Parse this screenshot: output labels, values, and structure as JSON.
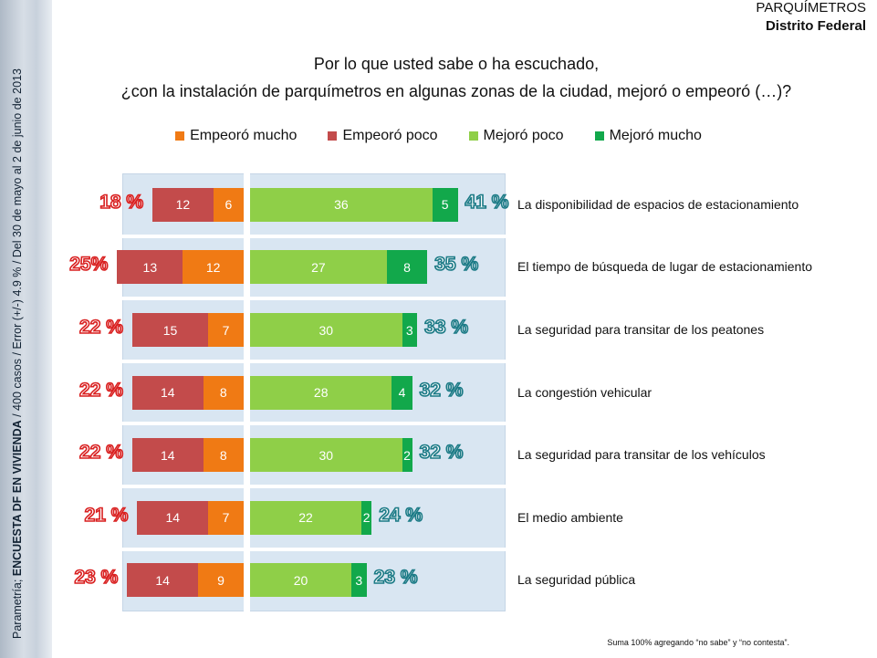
{
  "header": {
    "brand": "PARQUÍMETROS",
    "region": "Distrito Federal"
  },
  "sidebar_note": {
    "prefix": "Parametría; ",
    "survey": "ENCUESTA DF EN VIVIENDA",
    "details": " / 400 casos / Error (+/-) 4.9 % / Del 30 de mayo al 2  de junio de 2013"
  },
  "question": {
    "line1": "Por lo que usted sabe o ha escuchado,",
    "line2": "¿con la instalación de parquímetros en algunas zonas de la ciudad, mejoró o empeoró (…)?"
  },
  "footnote": "Suma 100%  agregando “no sabe” y “no contesta”.",
  "colors": {
    "empeoro_mucho": "#f07a14",
    "empeoro_poco": "#c34b4b",
    "mejoro_poco": "#8fcf48",
    "mejoro_mucho": "#12a84b",
    "total_negative": "#d92020",
    "total_positive": "#1b7a86"
  },
  "chart_data": {
    "type": "bar",
    "orientation": "horizontal",
    "stacked": "diverging",
    "legend_position": "top",
    "categories": [
      "La disponibilidad de espacios de estacionamiento",
      "El tiempo de búsqueda de lugar de estacionamiento",
      "La seguridad para transitar de los peatones",
      "La congestión vehicular",
      "La seguridad para transitar de los vehículos",
      "El medio ambiente",
      "La seguridad pública"
    ],
    "series": [
      {
        "name": "Empeoró mucho",
        "values": [
          6,
          12,
          7,
          8,
          8,
          7,
          9
        ]
      },
      {
        "name": "Empeoró poco",
        "values": [
          12,
          13,
          15,
          14,
          14,
          14,
          14
        ]
      },
      {
        "name": "Mejoró poco",
        "values": [
          36,
          27,
          30,
          28,
          30,
          22,
          20
        ]
      },
      {
        "name": "Mejoró mucho",
        "values": [
          5,
          8,
          3,
          4,
          2,
          2,
          3
        ]
      }
    ],
    "totals_negative": [
      "18 %",
      "25%",
      "22 %",
      "22 %",
      "22 %",
      "21 %",
      "23 %"
    ],
    "totals_positive": [
      "41 %",
      "35 %",
      "33 %",
      "32 %",
      "32 %",
      "24 %",
      "23 %"
    ]
  }
}
